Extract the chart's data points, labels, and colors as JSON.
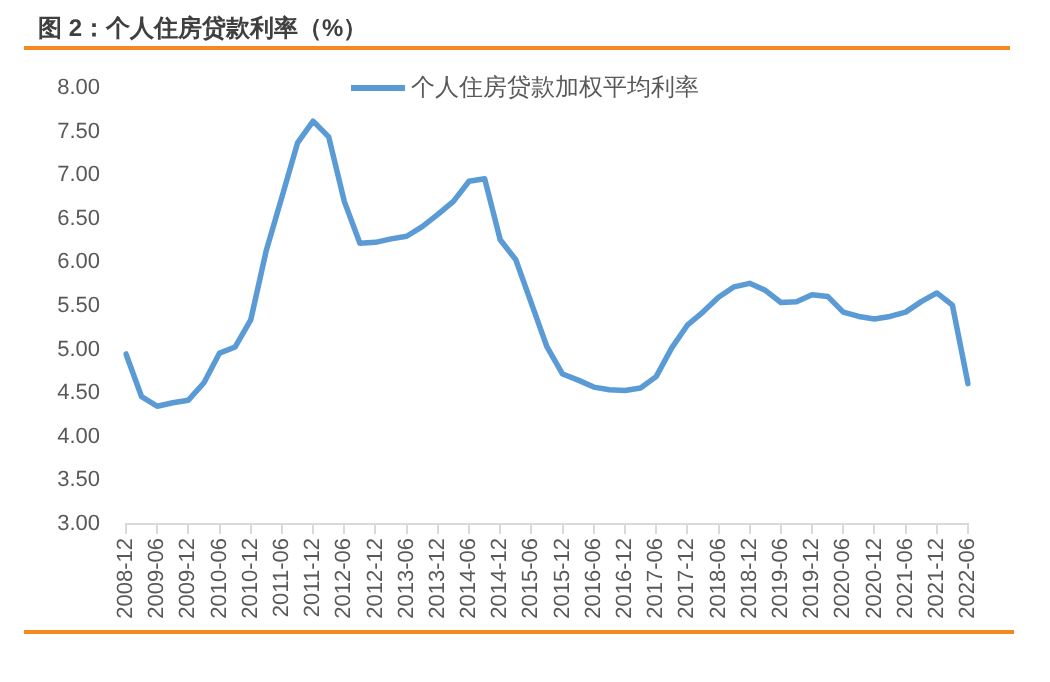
{
  "chart_data": {
    "type": "line",
    "title": "图 2：个人住房贷款利率（%）",
    "categories": [
      "2008-12",
      null,
      "2009-06",
      null,
      "2009-12",
      null,
      "2010-06",
      null,
      "2010-12",
      null,
      "2011-06",
      null,
      "2011-12",
      null,
      "2012-06",
      null,
      "2012-12",
      null,
      "2013-06",
      null,
      "2013-12",
      null,
      "2014-06",
      null,
      "2014-12",
      null,
      "2015-06",
      null,
      "2015-12",
      null,
      "2016-06",
      null,
      "2016-12",
      null,
      "2017-06",
      null,
      "2017-12",
      null,
      "2018-06",
      null,
      "2018-12",
      null,
      "2019-06",
      null,
      "2019-12",
      null,
      "2020-06",
      null,
      "2020-12",
      null,
      "2021-06",
      null,
      "2021-12",
      null,
      "2022-06"
    ],
    "series": [
      {
        "name": "个人住房贷款加权平均利率",
        "color": "#5b9bd5",
        "values": [
          4.95,
          4.46,
          4.35,
          4.39,
          4.42,
          4.62,
          4.96,
          5.03,
          5.34,
          6.14,
          6.75,
          7.37,
          7.62,
          7.44,
          6.7,
          6.22,
          6.23,
          6.27,
          6.3,
          6.41,
          6.55,
          6.7,
          6.93,
          6.96,
          6.26,
          6.03,
          5.53,
          5.03,
          4.72,
          4.65,
          4.57,
          4.54,
          4.53,
          4.56,
          4.69,
          5.02,
          5.28,
          5.43,
          5.6,
          5.72,
          5.76,
          5.68,
          5.54,
          5.55,
          5.63,
          5.61,
          5.43,
          5.38,
          5.35,
          5.38,
          5.43,
          5.55,
          5.65,
          5.51,
          4.61
        ]
      }
    ],
    "ylim": [
      3,
      8
    ],
    "yticks": [
      {
        "value": 3,
        "label": "3.00"
      },
      {
        "value": 3.5,
        "label": "3.50"
      },
      {
        "value": 4,
        "label": "4.00"
      },
      {
        "value": 4.5,
        "label": "4.50"
      },
      {
        "value": 5,
        "label": "5.00"
      },
      {
        "value": 5.5,
        "label": "5.50"
      },
      {
        "value": 6,
        "label": "6.00"
      },
      {
        "value": 6.5,
        "label": "6.50"
      },
      {
        "value": 7,
        "label": "7.00"
      },
      {
        "value": 7.5,
        "label": "7.50"
      },
      {
        "value": 8,
        "label": "8.00"
      }
    ],
    "legend": "top"
  }
}
